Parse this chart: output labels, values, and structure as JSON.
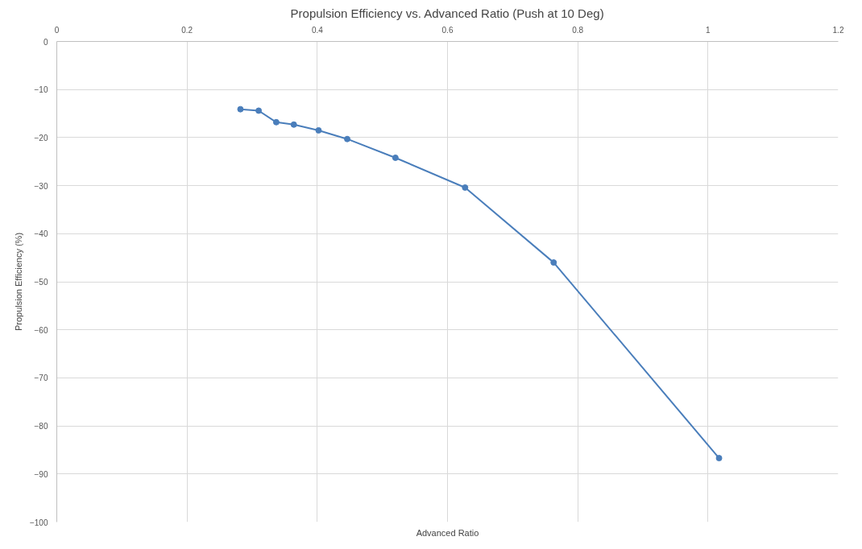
{
  "chart_data": {
    "type": "line",
    "title": "Propulsion Efficiency vs. Advanced Ratio (Push at 10 Deg)",
    "xlabel": "Advanced Ratio",
    "ylabel": "Propulsion Efficiency (%)",
    "x": [
      0.282,
      0.31,
      0.337,
      0.364,
      0.402,
      0.446,
      0.52,
      0.627,
      0.763,
      1.017
    ],
    "series": [
      {
        "color": "#4a7ebb",
        "values": [
          -14.1,
          -14.4,
          -16.8,
          -17.3,
          -18.5,
          -20.3,
          -24.2,
          -30.4,
          -46.0,
          -86.7
        ]
      }
    ],
    "xlim": [
      0,
      1.2
    ],
    "xticks": [
      0,
      0.2,
      0.4,
      0.6,
      0.8,
      1,
      1.2
    ],
    "ylim": [
      -100,
      0
    ],
    "yticks": [
      -100,
      -90,
      -80,
      -70,
      -60,
      -50,
      -40,
      -30,
      -20,
      -10,
      0
    ],
    "grid": true,
    "marker": "circle",
    "line_style": "solid"
  }
}
